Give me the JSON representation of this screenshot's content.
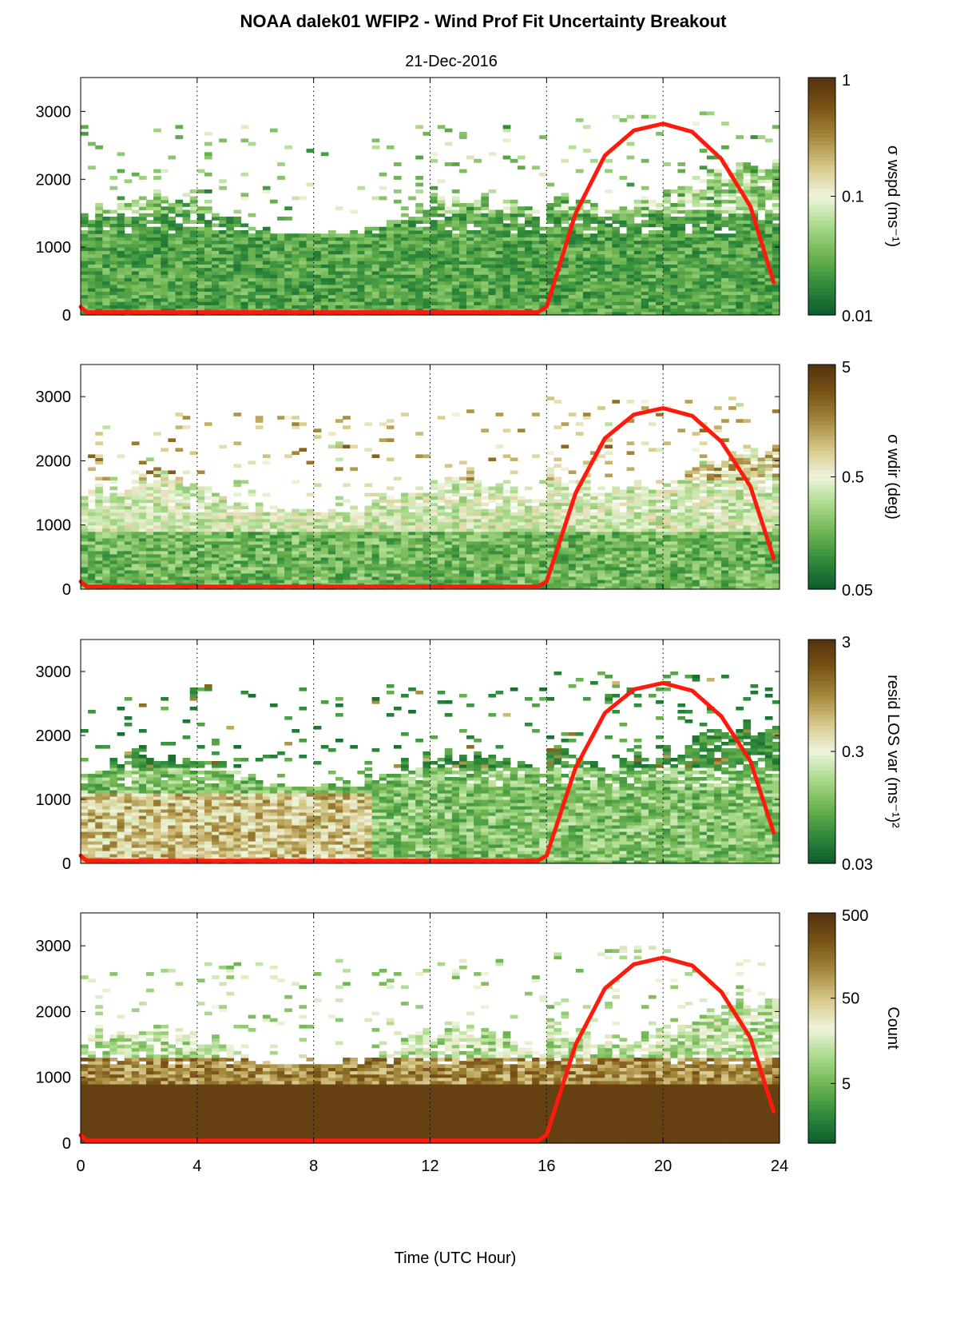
{
  "colors": {
    "sun_line": "#ff1a0d",
    "colormap": [
      "#0c5a2c",
      "#2f8a3b",
      "#6cb350",
      "#a9d98a",
      "#eef4dc",
      "#d7c88a",
      "#a5893c",
      "#7a5417",
      "#553210"
    ]
  },
  "chart_data": {
    "type": "heatmap",
    "title": "NOAA dalek01 WFIP2 - Wind Prof Fit Uncertainty Breakout",
    "subtitle": "21-Dec-2016",
    "xlabel": "Time (UTC Hour)",
    "xlim": [
      0,
      24
    ],
    "xticks": [
      "0",
      "4",
      "8",
      "12",
      "16",
      "20",
      "24"
    ],
    "ylim": [
      0,
      3500
    ],
    "yticks": [
      "0",
      "1000",
      "2000",
      "3000"
    ],
    "grid": "vertical dotted lines at x = 4, 8, 12, 16, 20, 24",
    "overlay_line": {
      "x": [
        0,
        0.2,
        15.7,
        16,
        17,
        18,
        19,
        20,
        21,
        22,
        23,
        23.8
      ],
      "y": [
        120,
        40,
        40,
        120,
        1500,
        2350,
        2720,
        2820,
        2700,
        2300,
        1600,
        480
      ]
    },
    "panels": [
      {
        "colorbar_label": "σ wspd (ms⁻¹)",
        "colorbar_ticks": [
          "1",
          "0.1",
          "0.01"
        ],
        "colorbar_scale": "log",
        "colorbar_range": [
          0.01,
          1
        ]
      },
      {
        "colorbar_label": "σ wdir (deg)",
        "colorbar_ticks": [
          "5",
          "0.5",
          "0.05"
        ],
        "colorbar_scale": "log",
        "colorbar_range": [
          0.05,
          5
        ]
      },
      {
        "colorbar_label": "resid LOS var (ms⁻¹)²",
        "colorbar_ticks": [
          "3",
          "0.3",
          "0.03"
        ],
        "colorbar_scale": "log",
        "colorbar_range": [
          0.03,
          3
        ]
      },
      {
        "colorbar_label": "Count",
        "colorbar_ticks": [
          "500",
          "50",
          "5"
        ],
        "colorbar_scale": "log",
        "colorbar_range": [
          1,
          500
        ]
      }
    ]
  }
}
